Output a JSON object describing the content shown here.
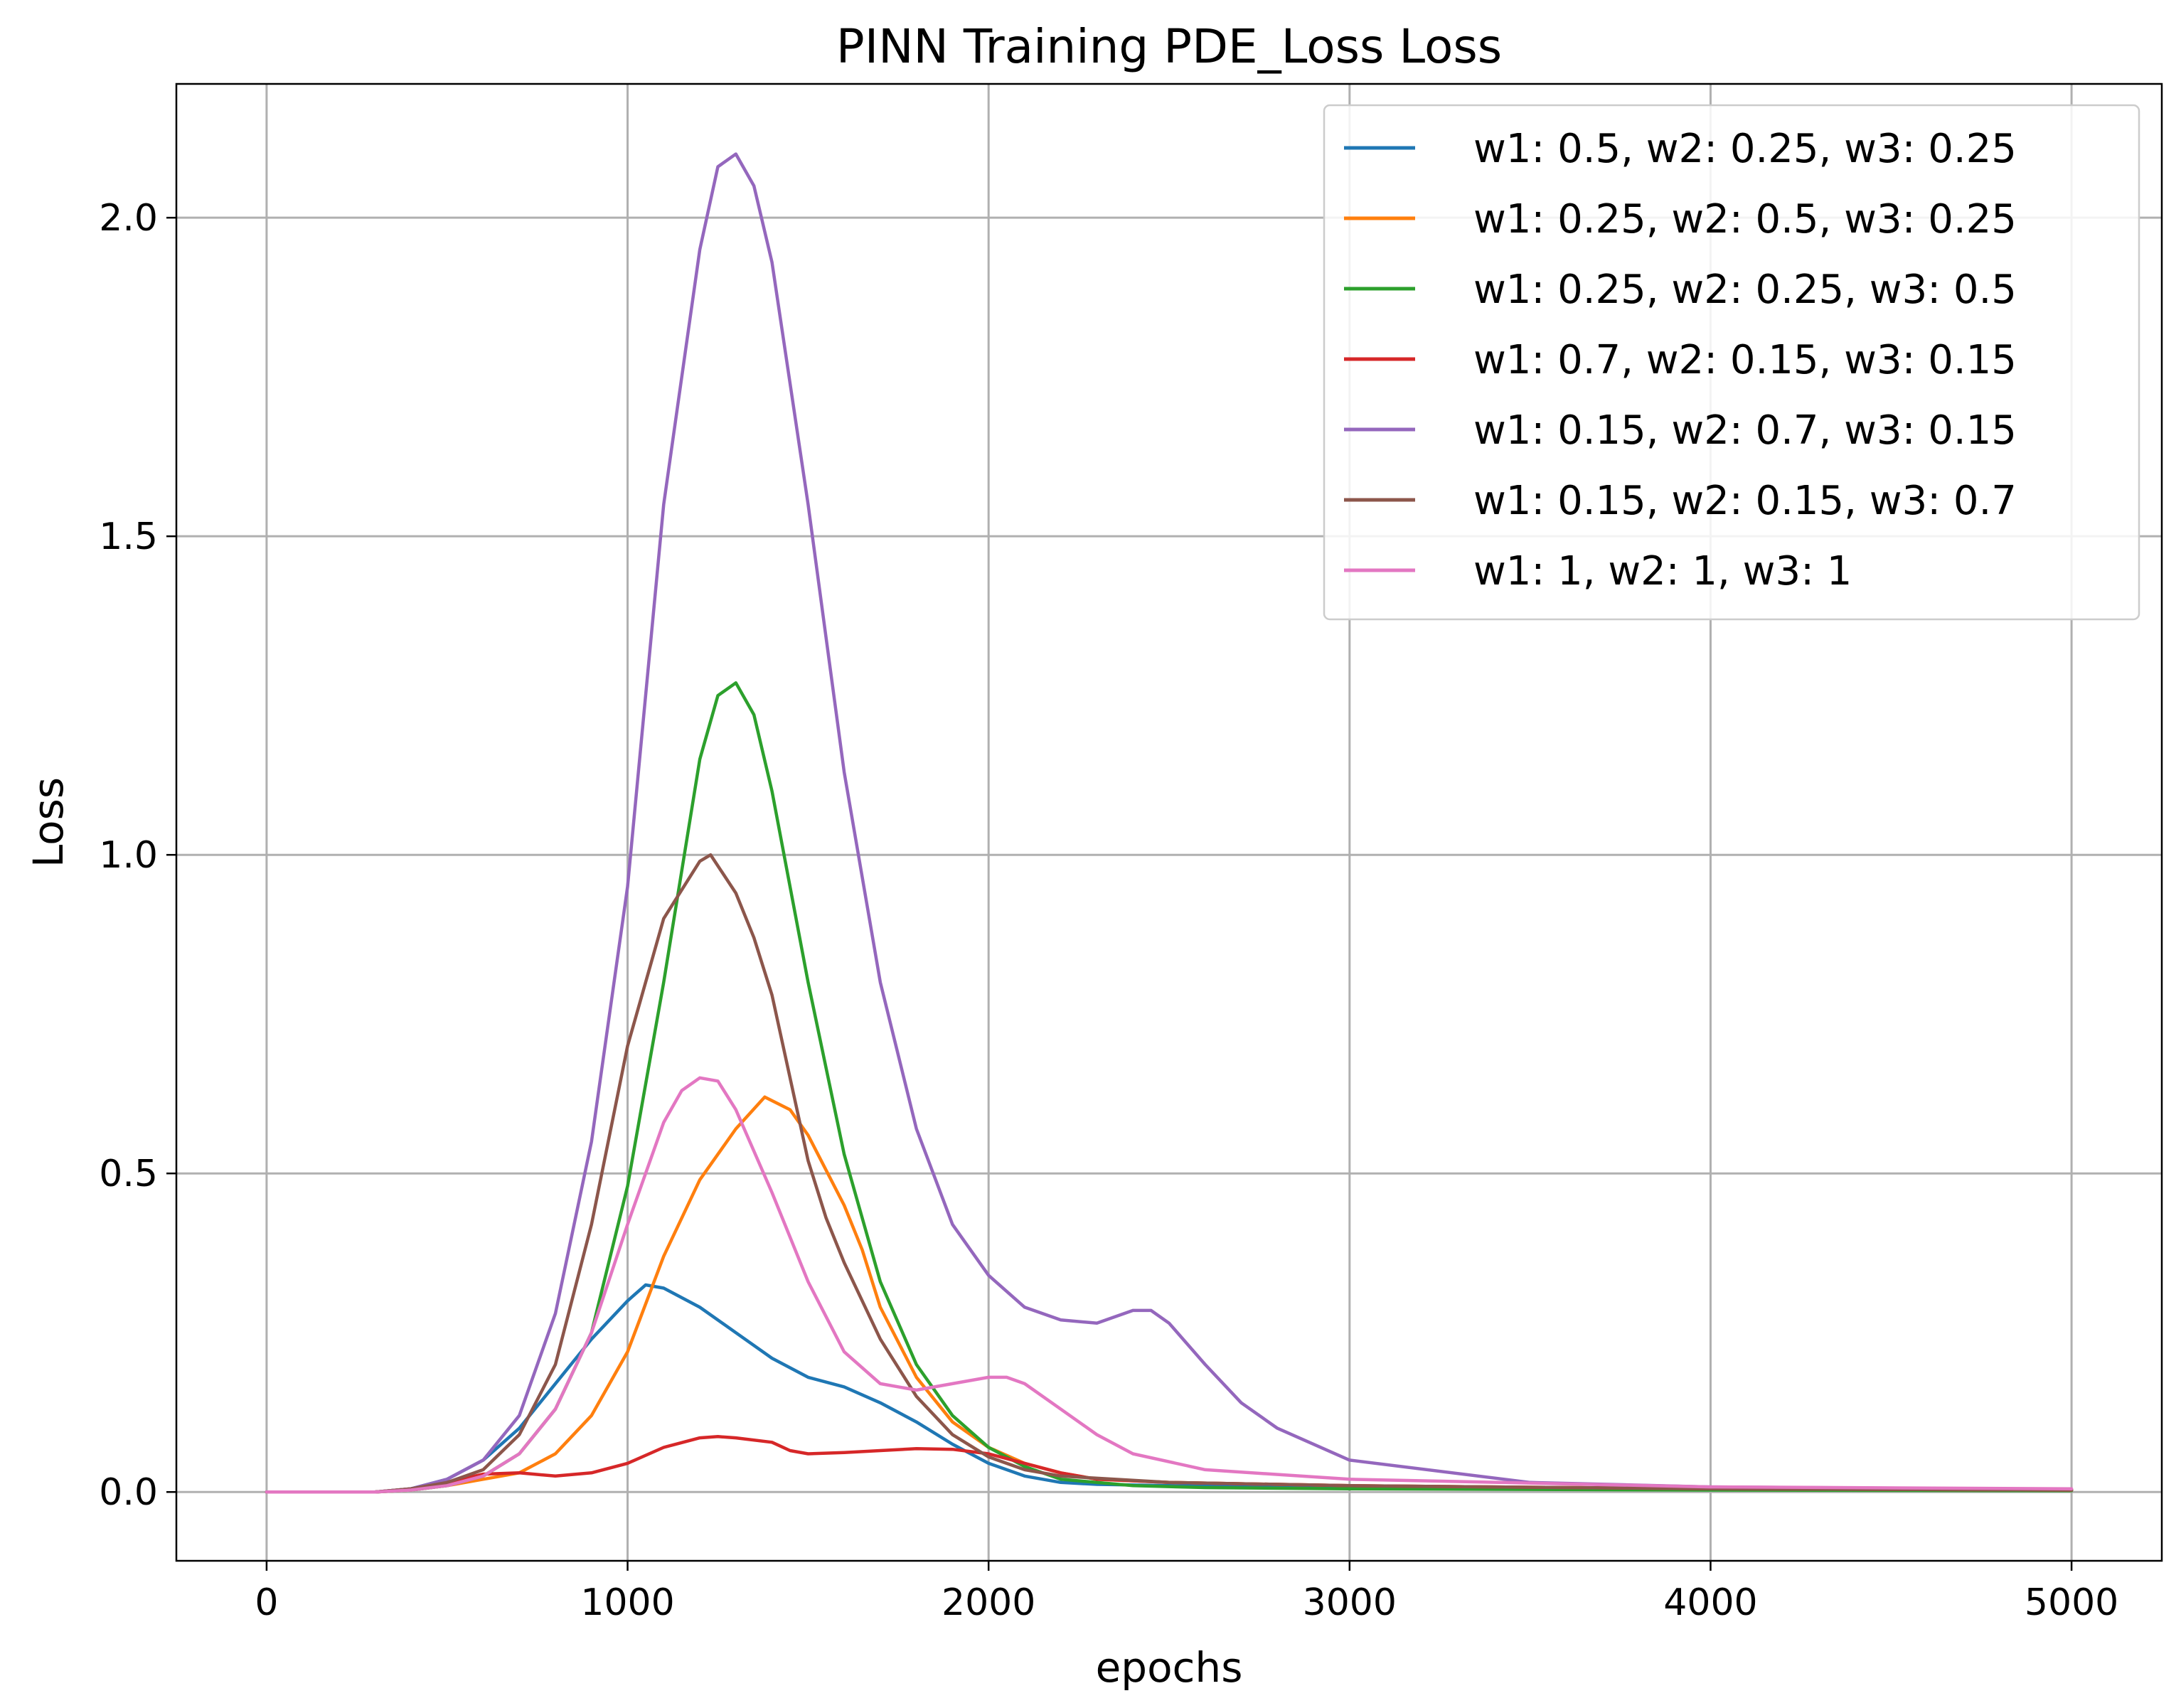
{
  "chart_data": {
    "type": "line",
    "title": "PINN Training PDE_Loss Loss",
    "xlabel": "epochs",
    "ylabel": "Loss",
    "xlim": [
      -250,
      5250
    ],
    "ylim": [
      -0.108,
      2.21
    ],
    "xticks": [
      0,
      1000,
      2000,
      3000,
      4000,
      5000
    ],
    "xtick_labels": [
      "0",
      "1000",
      "2000",
      "3000",
      "4000",
      "5000"
    ],
    "yticks": [
      0.0,
      0.5,
      1.0,
      1.5,
      2.0
    ],
    "ytick_labels": [
      "0.0",
      "0.5",
      "1.0",
      "1.5",
      "2.0"
    ],
    "grid": true,
    "legend_position": "upper-right",
    "series": [
      {
        "name": "w1: 0.5, w2: 0.25, w3: 0.25",
        "color": "#1f77b4",
        "x": [
          0,
          300,
          400,
          500,
          600,
          700,
          800,
          900,
          1000,
          1050,
          1100,
          1200,
          1300,
          1400,
          1500,
          1600,
          1700,
          1800,
          1900,
          2000,
          2100,
          2200,
          2300,
          2500,
          3000,
          4000,
          5000
        ],
        "y": [
          0,
          0,
          0.005,
          0.02,
          0.05,
          0.1,
          0.17,
          0.24,
          0.3,
          0.325,
          0.32,
          0.29,
          0.25,
          0.21,
          0.18,
          0.165,
          0.14,
          0.11,
          0.075,
          0.045,
          0.025,
          0.015,
          0.012,
          0.01,
          0.007,
          0.004,
          0.003
        ]
      },
      {
        "name": "w1: 0.25, w2: 0.5, w3: 0.25",
        "color": "#ff7f0e",
        "x": [
          0,
          300,
          400,
          500,
          600,
          700,
          800,
          900,
          1000,
          1100,
          1200,
          1300,
          1380,
          1450,
          1500,
          1600,
          1650,
          1700,
          1800,
          1900,
          2000,
          2100,
          2200,
          2300,
          2500,
          3000,
          4000,
          5000
        ],
        "y": [
          0,
          0,
          0.003,
          0.01,
          0.02,
          0.03,
          0.06,
          0.12,
          0.22,
          0.37,
          0.49,
          0.57,
          0.62,
          0.6,
          0.56,
          0.45,
          0.38,
          0.29,
          0.18,
          0.11,
          0.07,
          0.045,
          0.03,
          0.02,
          0.015,
          0.01,
          0.005,
          0.003
        ]
      },
      {
        "name": "w1: 0.25, w2: 0.25, w3: 0.5",
        "color": "#2ca02c",
        "x": [
          0,
          300,
          400,
          500,
          600,
          700,
          800,
          900,
          1000,
          1100,
          1200,
          1250,
          1300,
          1350,
          1400,
          1500,
          1600,
          1700,
          1800,
          1900,
          2000,
          2100,
          2200,
          2400,
          2600,
          3000,
          4000,
          5000
        ],
        "y": [
          0,
          0,
          0.003,
          0.01,
          0.025,
          0.06,
          0.13,
          0.25,
          0.48,
          0.8,
          1.15,
          1.25,
          1.27,
          1.22,
          1.1,
          0.8,
          0.53,
          0.33,
          0.2,
          0.12,
          0.07,
          0.04,
          0.02,
          0.01,
          0.007,
          0.005,
          0.003,
          0.002
        ]
      },
      {
        "name": "w1: 0.7, w2: 0.15, w3: 0.15",
        "color": "#d62728",
        "x": [
          0,
          300,
          400,
          500,
          600,
          700,
          800,
          900,
          1000,
          1100,
          1200,
          1250,
          1300,
          1400,
          1450,
          1500,
          1600,
          1700,
          1800,
          1900,
          2000,
          2100,
          2200,
          2300,
          2500,
          3000,
          4000,
          5000
        ],
        "y": [
          0,
          0,
          0.005,
          0.015,
          0.028,
          0.03,
          0.025,
          0.03,
          0.045,
          0.07,
          0.085,
          0.087,
          0.085,
          0.078,
          0.065,
          0.06,
          0.062,
          0.065,
          0.068,
          0.067,
          0.06,
          0.045,
          0.03,
          0.02,
          0.015,
          0.01,
          0.005,
          0.003
        ]
      },
      {
        "name": "w1: 0.15, w2: 0.7, w3: 0.15",
        "color": "#9467bd",
        "x": [
          0,
          300,
          400,
          500,
          600,
          700,
          800,
          900,
          1000,
          1100,
          1200,
          1250,
          1300,
          1350,
          1400,
          1500,
          1600,
          1700,
          1800,
          1900,
          2000,
          2100,
          2200,
          2300,
          2400,
          2450,
          2500,
          2600,
          2700,
          2800,
          3000,
          3500,
          4000,
          5000
        ],
        "y": [
          0,
          0,
          0.005,
          0.02,
          0.05,
          0.12,
          0.28,
          0.55,
          0.95,
          1.55,
          1.95,
          2.08,
          2.1,
          2.05,
          1.93,
          1.55,
          1.13,
          0.8,
          0.57,
          0.42,
          0.34,
          0.29,
          0.27,
          0.265,
          0.285,
          0.285,
          0.265,
          0.2,
          0.14,
          0.1,
          0.05,
          0.015,
          0.008,
          0.004
        ]
      },
      {
        "name": "w1: 0.15, w2: 0.15, w3: 0.7",
        "color": "#8c564b",
        "x": [
          0,
          300,
          400,
          500,
          600,
          700,
          800,
          900,
          1000,
          1100,
          1200,
          1230,
          1300,
          1350,
          1400,
          1500,
          1550,
          1600,
          1700,
          1800,
          1900,
          2000,
          2100,
          2200,
          2500,
          3000,
          4000,
          5000
        ],
        "y": [
          0,
          0,
          0.005,
          0.015,
          0.035,
          0.09,
          0.2,
          0.42,
          0.7,
          0.9,
          0.99,
          1.0,
          0.94,
          0.87,
          0.78,
          0.52,
          0.43,
          0.36,
          0.24,
          0.15,
          0.09,
          0.055,
          0.035,
          0.025,
          0.015,
          0.01,
          0.005,
          0.003
        ]
      },
      {
        "name": "w1: 1, w2: 1, w3: 1",
        "color": "#e377c2",
        "x": [
          0,
          300,
          400,
          500,
          600,
          700,
          800,
          900,
          1000,
          1100,
          1150,
          1200,
          1250,
          1300,
          1400,
          1500,
          1600,
          1700,
          1800,
          1900,
          2000,
          2050,
          2100,
          2200,
          2300,
          2400,
          2600,
          3000,
          4000,
          5000
        ],
        "y": [
          0,
          0,
          0.003,
          0.01,
          0.025,
          0.06,
          0.13,
          0.25,
          0.42,
          0.58,
          0.63,
          0.65,
          0.645,
          0.6,
          0.47,
          0.33,
          0.22,
          0.17,
          0.16,
          0.17,
          0.18,
          0.18,
          0.17,
          0.13,
          0.09,
          0.06,
          0.035,
          0.02,
          0.008,
          0.005
        ]
      }
    ]
  }
}
